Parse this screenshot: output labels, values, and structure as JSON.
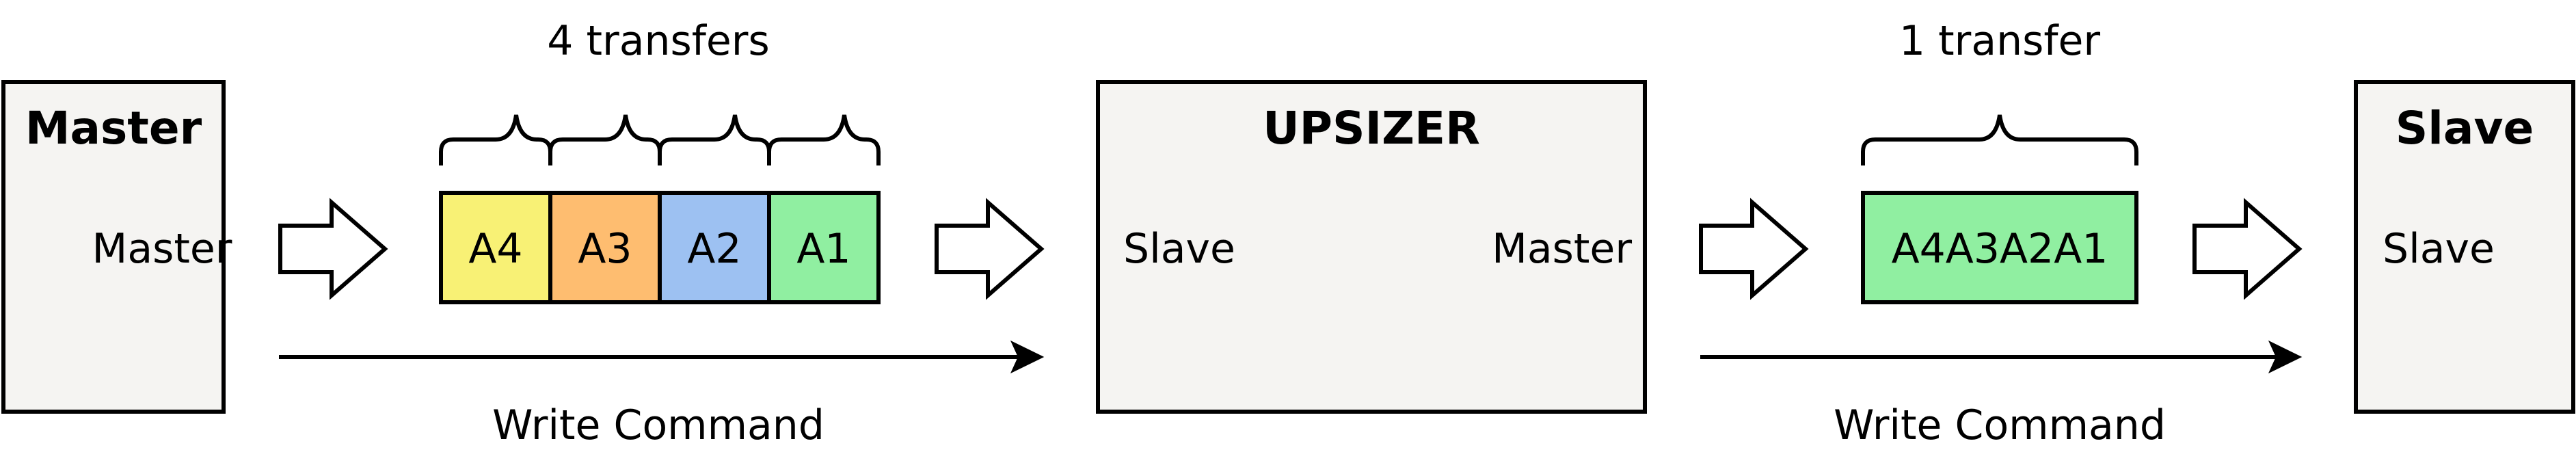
{
  "blocks": {
    "master": {
      "title": "Master",
      "port_label": "Master"
    },
    "upsizer": {
      "title": "UPSIZER",
      "slave_port_label": "Slave",
      "master_port_label": "Master"
    },
    "slave": {
      "title": "Slave",
      "port_label": "Slave"
    }
  },
  "left_side": {
    "transfer_count_label": "4 transfers",
    "cells": [
      {
        "label": "A4",
        "color": "#F8F175"
      },
      {
        "label": "A3",
        "color": "#FEBD70"
      },
      {
        "label": "A2",
        "color": "#9DC1F2"
      },
      {
        "label": "A1",
        "color": "#90EFA1"
      }
    ],
    "command_label": "Write Command"
  },
  "right_side": {
    "transfer_count_label": "1 transfer",
    "cell": {
      "label": "A4A3A2A1",
      "color": "#90EFA1"
    },
    "command_label": "Write Command"
  },
  "colors": {
    "block_fill": "#F5F4F2",
    "stroke": "#000000",
    "arrow_fill": "#FFFFFF"
  }
}
